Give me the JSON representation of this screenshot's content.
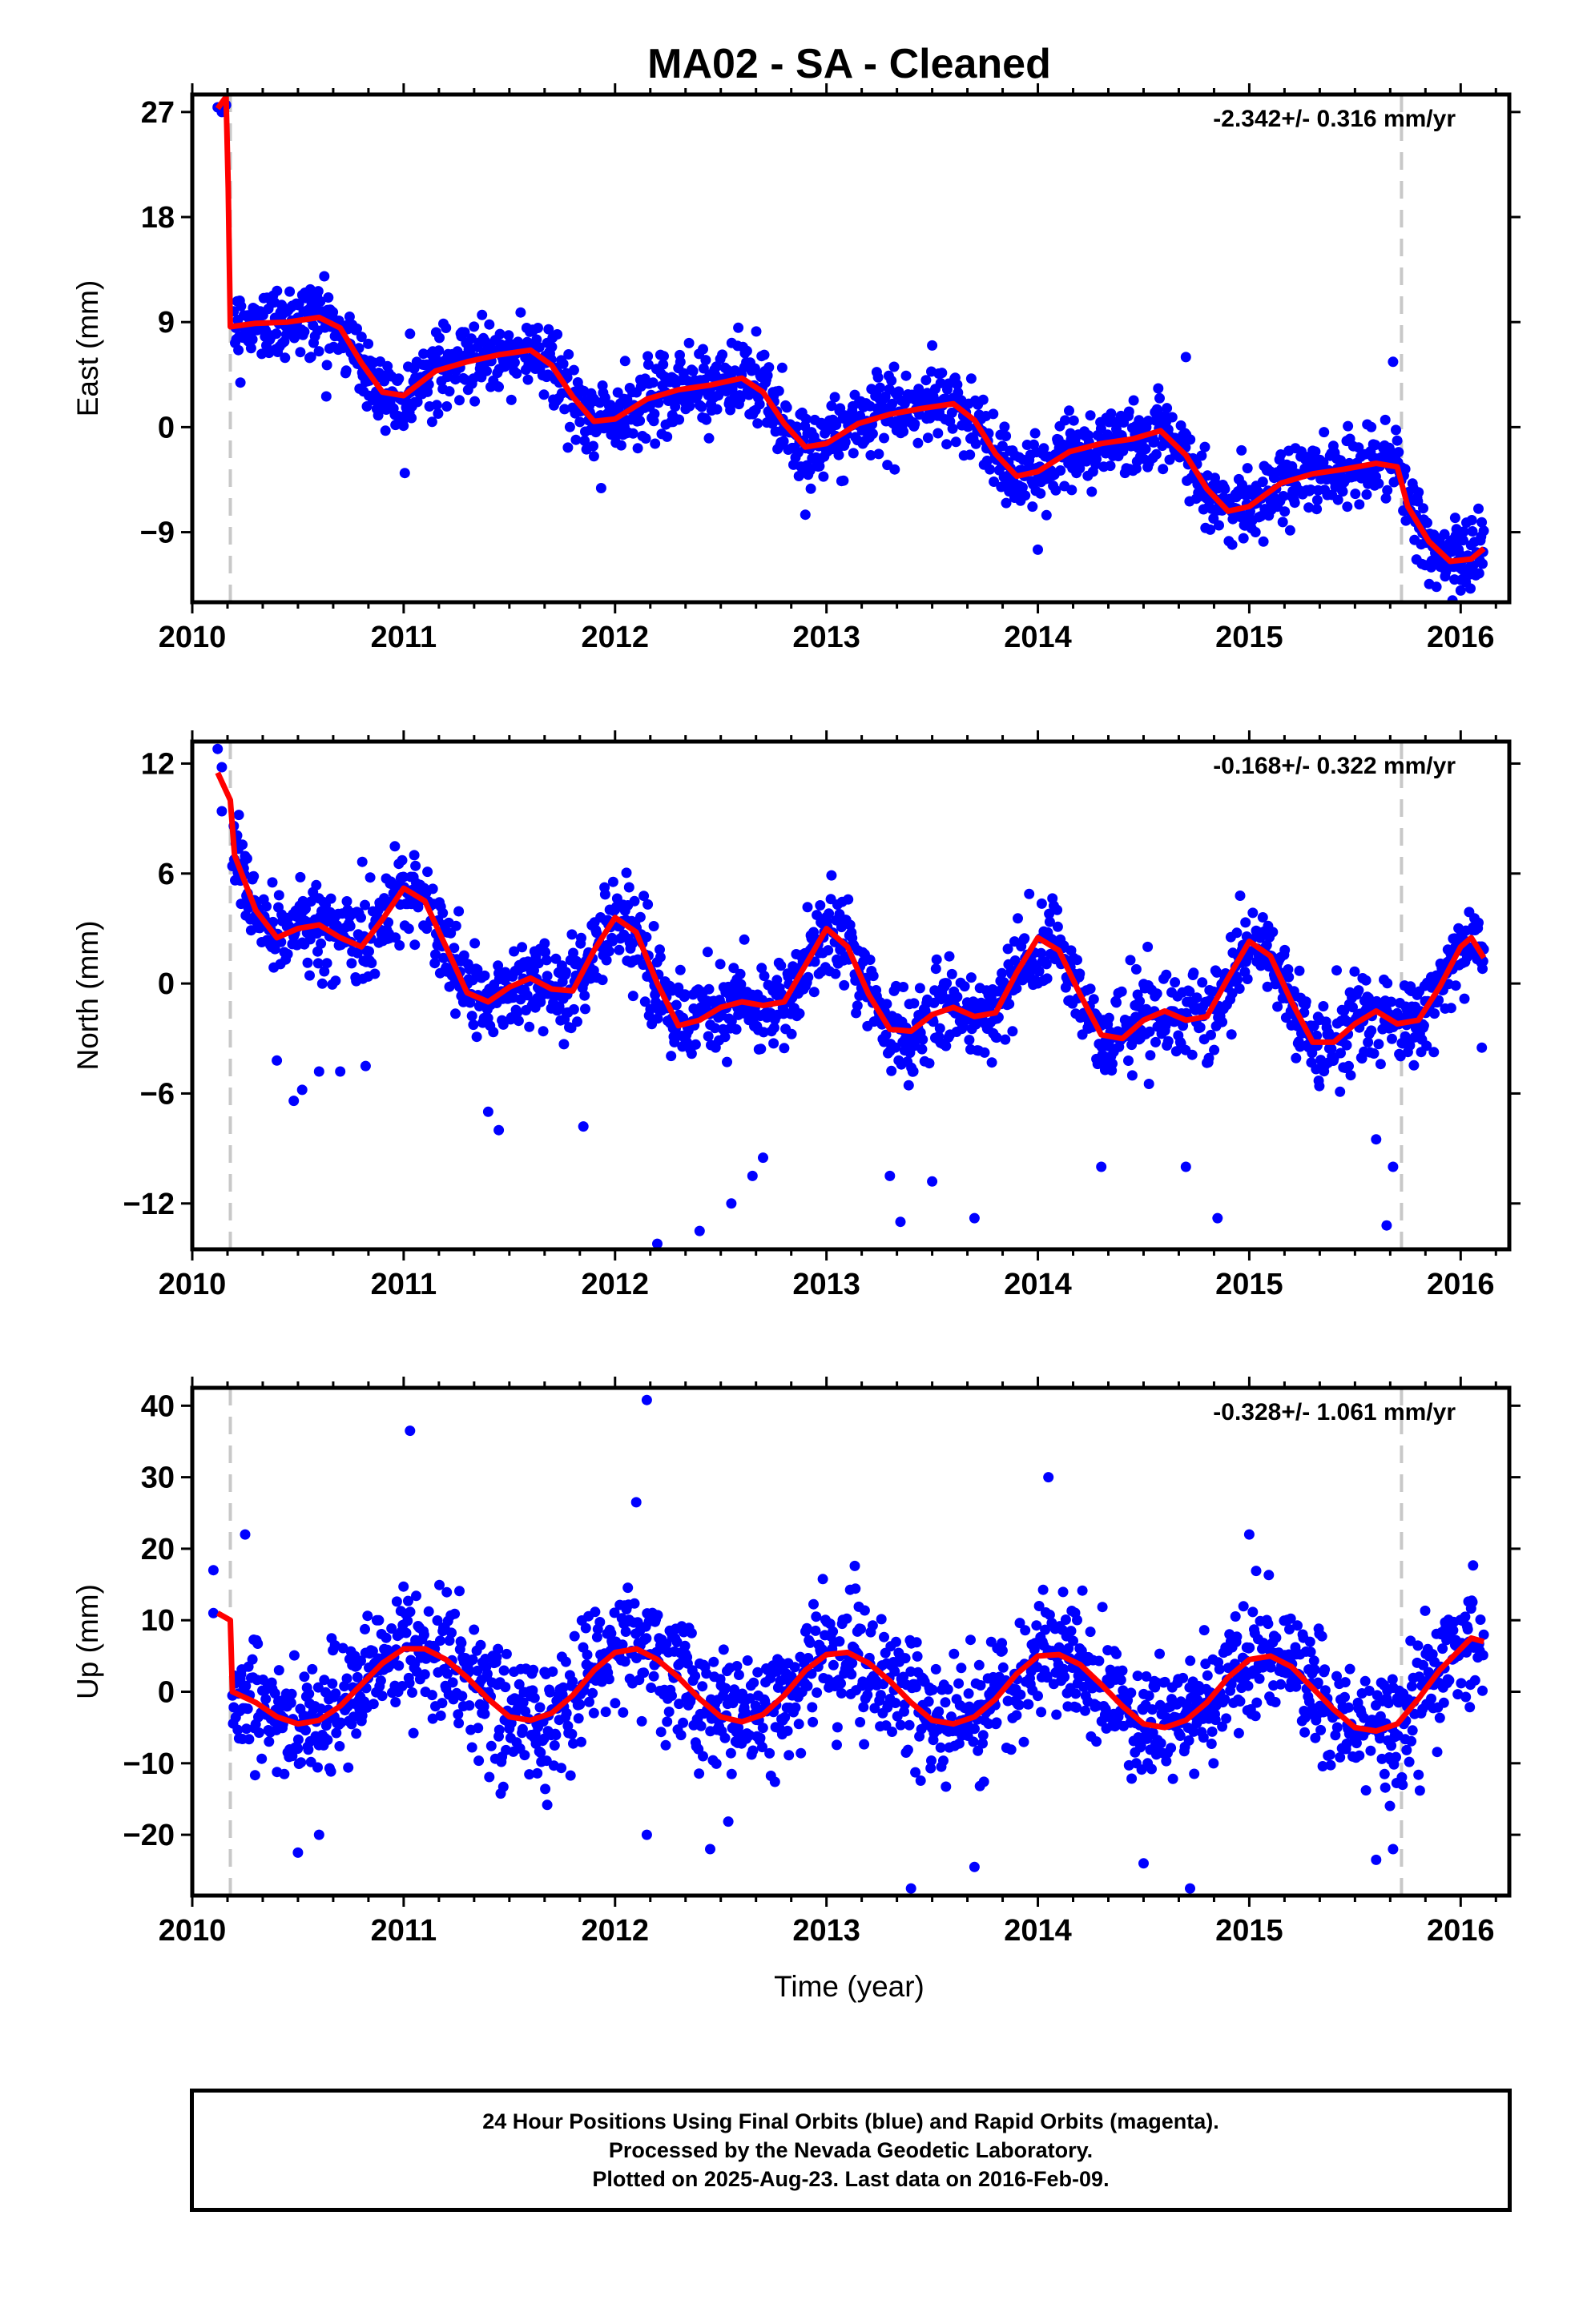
{
  "title": "MA02  - SA - Cleaned",
  "x_axis_label": "Time (year)",
  "footer": [
    "24 Hour Positions Using Final Orbits (blue) and Rapid Orbits (magenta).",
    "Processed by the Nevada Geodetic Laboratory.",
    "Plotted on 2025-Aug-23. Last data on 2016-Feb-09."
  ],
  "colors": {
    "points": "#0000ff",
    "fit": "#ff0000",
    "breaks": "#c8c8c8",
    "frame": "#000000"
  },
  "chart_data": [
    {
      "type": "scatter",
      "ylabel": "East (mm)",
      "rate": "-2.342+/- 0.316 mm/yr",
      "xlim": [
        2010,
        2016.23
      ],
      "ylim": [
        -15,
        28.5
      ],
      "xticks": [
        2010,
        2011,
        2012,
        2013,
        2014,
        2015,
        2016
      ],
      "yticks": [
        -9,
        0,
        9,
        18,
        27
      ],
      "ytick_labels": [
        "−9",
        "0",
        "9",
        "18",
        "27"
      ],
      "break_lines_x": [
        2010.18,
        2015.72
      ],
      "fit_line": [
        [
          2010.12,
          27.3
        ],
        [
          2010.16,
          28.3
        ],
        [
          2010.17,
          20.5
        ],
        [
          2010.18,
          8.6
        ],
        [
          2010.3,
          8.9
        ],
        [
          2010.45,
          9.0
        ],
        [
          2010.6,
          9.4
        ],
        [
          2010.7,
          8.5
        ],
        [
          2010.8,
          5.5
        ],
        [
          2010.9,
          3.0
        ],
        [
          2011.0,
          2.7
        ],
        [
          2011.15,
          4.8
        ],
        [
          2011.3,
          5.6
        ],
        [
          2011.45,
          6.2
        ],
        [
          2011.6,
          6.6
        ],
        [
          2011.7,
          5.3
        ],
        [
          2011.8,
          2.6
        ],
        [
          2011.9,
          0.5
        ],
        [
          2012.0,
          0.7
        ],
        [
          2012.15,
          2.4
        ],
        [
          2012.3,
          3.2
        ],
        [
          2012.45,
          3.6
        ],
        [
          2012.6,
          4.2
        ],
        [
          2012.7,
          3.0
        ],
        [
          2012.8,
          0.3
        ],
        [
          2012.9,
          -1.7
        ],
        [
          2013.0,
          -1.4
        ],
        [
          2013.15,
          0.3
        ],
        [
          2013.3,
          1.1
        ],
        [
          2013.45,
          1.6
        ],
        [
          2013.6,
          2.0
        ],
        [
          2013.7,
          0.6
        ],
        [
          2013.8,
          -2.3
        ],
        [
          2013.9,
          -4.2
        ],
        [
          2014.0,
          -3.8
        ],
        [
          2014.15,
          -2.1
        ],
        [
          2014.3,
          -1.4
        ],
        [
          2014.45,
          -1.0
        ],
        [
          2014.58,
          -0.3
        ],
        [
          2014.7,
          -2.4
        ],
        [
          2014.8,
          -5.3
        ],
        [
          2014.9,
          -7.2
        ],
        [
          2015.0,
          -6.8
        ],
        [
          2015.15,
          -4.8
        ],
        [
          2015.3,
          -4.0
        ],
        [
          2015.45,
          -3.6
        ],
        [
          2015.6,
          -3.1
        ],
        [
          2015.7,
          -3.4
        ],
        [
          2015.75,
          -6.8
        ],
        [
          2015.85,
          -9.8
        ],
        [
          2015.95,
          -11.5
        ],
        [
          2016.05,
          -11.3
        ],
        [
          2016.11,
          -10.4
        ]
      ],
      "seasonal_points": [
        [
          2010.12,
          27.4
        ],
        [
          2010.14,
          27.0
        ],
        [
          2010.16,
          27.6
        ],
        [
          2011.03,
          8.0
        ],
        [
          2011.2,
          8.5
        ],
        [
          2012.35,
          7.2
        ],
        [
          2013.5,
          7.0
        ],
        [
          2014.0,
          -10.5
        ],
        [
          2014.7,
          6.0
        ],
        [
          2015.68,
          5.6
        ],
        [
          2016.0,
          -14.0
        ],
        [
          2012.9,
          -7.5
        ],
        [
          2013.85,
          -6.5
        ],
        [
          2010.85,
          4.5
        ],
        [
          2011.9,
          -2.5
        ]
      ],
      "noise_sd": 1.6
    },
    {
      "type": "scatter",
      "ylabel": "North (mm)",
      "rate": "-0.168+/- 0.322 mm/yr",
      "xlim": [
        2010,
        2016.23
      ],
      "ylim": [
        -14.5,
        13.2
      ],
      "xticks": [
        2010,
        2011,
        2012,
        2013,
        2014,
        2015,
        2016
      ],
      "yticks": [
        -12,
        -6,
        0,
        6,
        12
      ],
      "ytick_labels": [
        "−12",
        "−6",
        "0",
        "6",
        "12"
      ],
      "break_lines_x": [
        2010.18,
        2015.72
      ],
      "fit_line": [
        [
          2010.12,
          11.5
        ],
        [
          2010.18,
          10.0
        ],
        [
          2010.2,
          7.0
        ],
        [
          2010.3,
          4.0
        ],
        [
          2010.4,
          2.5
        ],
        [
          2010.5,
          3.0
        ],
        [
          2010.6,
          3.2
        ],
        [
          2010.7,
          2.5
        ],
        [
          2010.8,
          2.0
        ],
        [
          2010.9,
          3.5
        ],
        [
          2011.0,
          5.2
        ],
        [
          2011.1,
          4.5
        ],
        [
          2011.2,
          2.0
        ],
        [
          2011.3,
          -0.5
        ],
        [
          2011.4,
          -1.0
        ],
        [
          2011.5,
          -0.2
        ],
        [
          2011.6,
          0.3
        ],
        [
          2011.7,
          -0.3
        ],
        [
          2011.8,
          -0.4
        ],
        [
          2011.9,
          1.8
        ],
        [
          2012.0,
          3.6
        ],
        [
          2012.1,
          2.8
        ],
        [
          2012.2,
          0.0
        ],
        [
          2012.3,
          -2.3
        ],
        [
          2012.4,
          -2.0
        ],
        [
          2012.5,
          -1.3
        ],
        [
          2012.6,
          -1.0
        ],
        [
          2012.7,
          -1.2
        ],
        [
          2012.8,
          -1.0
        ],
        [
          2012.9,
          1.0
        ],
        [
          2013.0,
          3.0
        ],
        [
          2013.1,
          2.0
        ],
        [
          2013.2,
          -0.6
        ],
        [
          2013.3,
          -2.5
        ],
        [
          2013.4,
          -2.6
        ],
        [
          2013.5,
          -1.7
        ],
        [
          2013.6,
          -1.3
        ],
        [
          2013.7,
          -1.8
        ],
        [
          2013.8,
          -1.6
        ],
        [
          2013.9,
          0.6
        ],
        [
          2014.0,
          2.5
        ],
        [
          2014.1,
          1.8
        ],
        [
          2014.2,
          -0.6
        ],
        [
          2014.3,
          -2.8
        ],
        [
          2014.4,
          -3.0
        ],
        [
          2014.5,
          -2.0
        ],
        [
          2014.6,
          -1.5
        ],
        [
          2014.7,
          -2.0
        ],
        [
          2014.8,
          -1.8
        ],
        [
          2014.9,
          0.3
        ],
        [
          2015.0,
          2.3
        ],
        [
          2015.1,
          1.5
        ],
        [
          2015.2,
          -1.0
        ],
        [
          2015.3,
          -3.2
        ],
        [
          2015.4,
          -3.2
        ],
        [
          2015.5,
          -2.2
        ],
        [
          2015.6,
          -1.5
        ],
        [
          2015.7,
          -2.2
        ],
        [
          2015.8,
          -2.0
        ],
        [
          2015.9,
          -0.2
        ],
        [
          2016.0,
          2.0
        ],
        [
          2016.05,
          2.5
        ],
        [
          2016.11,
          1.4
        ]
      ],
      "seasonal_points": [
        [
          2010.12,
          12.8
        ],
        [
          2010.14,
          11.8
        ],
        [
          2010.14,
          9.4
        ],
        [
          2010.22,
          9.2
        ],
        [
          2010.4,
          -4.2
        ],
        [
          2010.48,
          -6.4
        ],
        [
          2010.52,
          -5.8
        ],
        [
          2010.6,
          -4.8
        ],
        [
          2010.7,
          -4.8
        ],
        [
          2010.82,
          -4.5
        ],
        [
          2011.05,
          7.0
        ],
        [
          2011.4,
          -7.0
        ],
        [
          2011.45,
          -8.0
        ],
        [
          2011.85,
          -7.8
        ],
        [
          2012.2,
          -14.2
        ],
        [
          2012.4,
          -13.5
        ],
        [
          2012.55,
          -12.0
        ],
        [
          2012.65,
          -10.5
        ],
        [
          2012.7,
          -9.5
        ],
        [
          2013.3,
          -10.5
        ],
        [
          2013.35,
          -13.0
        ],
        [
          2013.5,
          -10.8
        ],
        [
          2013.7,
          -12.8
        ],
        [
          2014.3,
          -10.0
        ],
        [
          2014.7,
          -10.0
        ],
        [
          2014.85,
          -12.8
        ],
        [
          2015.6,
          -8.5
        ],
        [
          2015.65,
          -13.2
        ],
        [
          2015.68,
          -10.0
        ],
        [
          2016.1,
          -3.5
        ]
      ],
      "noise_sd": 1.2
    },
    {
      "type": "scatter",
      "ylabel": "Up (mm)",
      "rate": "-0.328+/- 1.061 mm/yr",
      "xlim": [
        2010,
        2016.23
      ],
      "ylim": [
        -28.5,
        42.5
      ],
      "xticks": [
        2010,
        2011,
        2012,
        2013,
        2014,
        2015,
        2016
      ],
      "yticks": [
        -20,
        -10,
        0,
        10,
        20,
        30,
        40
      ],
      "ytick_labels": [
        "−20",
        "−10",
        "0",
        "10",
        "20",
        "30",
        "40"
      ],
      "break_lines_x": [
        2010.18,
        2015.72
      ],
      "fit_line": [
        [
          2010.12,
          11.0
        ],
        [
          2010.18,
          10.0
        ],
        [
          2010.19,
          0.0
        ],
        [
          2010.3,
          -1.5
        ],
        [
          2010.4,
          -3.5
        ],
        [
          2010.5,
          -4.5
        ],
        [
          2010.6,
          -4.0
        ],
        [
          2010.7,
          -2.0
        ],
        [
          2010.8,
          1.0
        ],
        [
          2010.9,
          4.0
        ],
        [
          2011.0,
          6.0
        ],
        [
          2011.1,
          6.0
        ],
        [
          2011.2,
          4.5
        ],
        [
          2011.3,
          2.0
        ],
        [
          2011.4,
          -1.0
        ],
        [
          2011.5,
          -3.5
        ],
        [
          2011.6,
          -4.0
        ],
        [
          2011.7,
          -3.0
        ],
        [
          2011.8,
          -0.5
        ],
        [
          2011.9,
          3.0
        ],
        [
          2012.0,
          5.5
        ],
        [
          2012.1,
          6.0
        ],
        [
          2012.2,
          4.5
        ],
        [
          2012.3,
          2.0
        ],
        [
          2012.4,
          -1.0
        ],
        [
          2012.5,
          -3.5
        ],
        [
          2012.6,
          -4.2
        ],
        [
          2012.7,
          -3.2
        ],
        [
          2012.8,
          -0.5
        ],
        [
          2012.9,
          3.0
        ],
        [
          2013.0,
          5.2
        ],
        [
          2013.1,
          5.5
        ],
        [
          2013.2,
          4.0
        ],
        [
          2013.3,
          1.5
        ],
        [
          2013.4,
          -1.5
        ],
        [
          2013.5,
          -4.0
        ],
        [
          2013.6,
          -4.5
        ],
        [
          2013.7,
          -3.5
        ],
        [
          2013.8,
          -1.0
        ],
        [
          2013.9,
          2.5
        ],
        [
          2014.0,
          5.0
        ],
        [
          2014.1,
          5.2
        ],
        [
          2014.2,
          3.8
        ],
        [
          2014.3,
          1.0
        ],
        [
          2014.4,
          -2.0
        ],
        [
          2014.5,
          -4.5
        ],
        [
          2014.6,
          -5.0
        ],
        [
          2014.7,
          -4.0
        ],
        [
          2014.8,
          -1.5
        ],
        [
          2014.9,
          2.0
        ],
        [
          2015.0,
          4.5
        ],
        [
          2015.1,
          5.0
        ],
        [
          2015.2,
          3.5
        ],
        [
          2015.3,
          0.5
        ],
        [
          2015.4,
          -2.5
        ],
        [
          2015.5,
          -5.0
        ],
        [
          2015.6,
          -5.5
        ],
        [
          2015.7,
          -4.5
        ],
        [
          2015.8,
          -1.0
        ],
        [
          2015.9,
          3.0
        ],
        [
          2016.0,
          6.0
        ],
        [
          2016.05,
          7.5
        ],
        [
          2016.11,
          7.0
        ]
      ],
      "seasonal_points": [
        [
          2010.1,
          17.0
        ],
        [
          2010.1,
          11.0
        ],
        [
          2010.25,
          22.0
        ],
        [
          2011.03,
          36.5
        ],
        [
          2012.15,
          40.8
        ],
        [
          2012.1,
          26.5
        ],
        [
          2012.15,
          -20.0
        ],
        [
          2012.45,
          -22.0
        ],
        [
          2013.4,
          -27.5
        ],
        [
          2013.7,
          -24.5
        ],
        [
          2014.05,
          30.0
        ],
        [
          2014.5,
          -24.0
        ],
        [
          2014.72,
          -27.5
        ],
        [
          2015.0,
          22.0
        ],
        [
          2015.6,
          -23.5
        ],
        [
          2015.68,
          -22.0
        ],
        [
          2010.5,
          -22.5
        ],
        [
          2010.6,
          -20.0
        ]
      ],
      "noise_sd": 4.2
    }
  ]
}
